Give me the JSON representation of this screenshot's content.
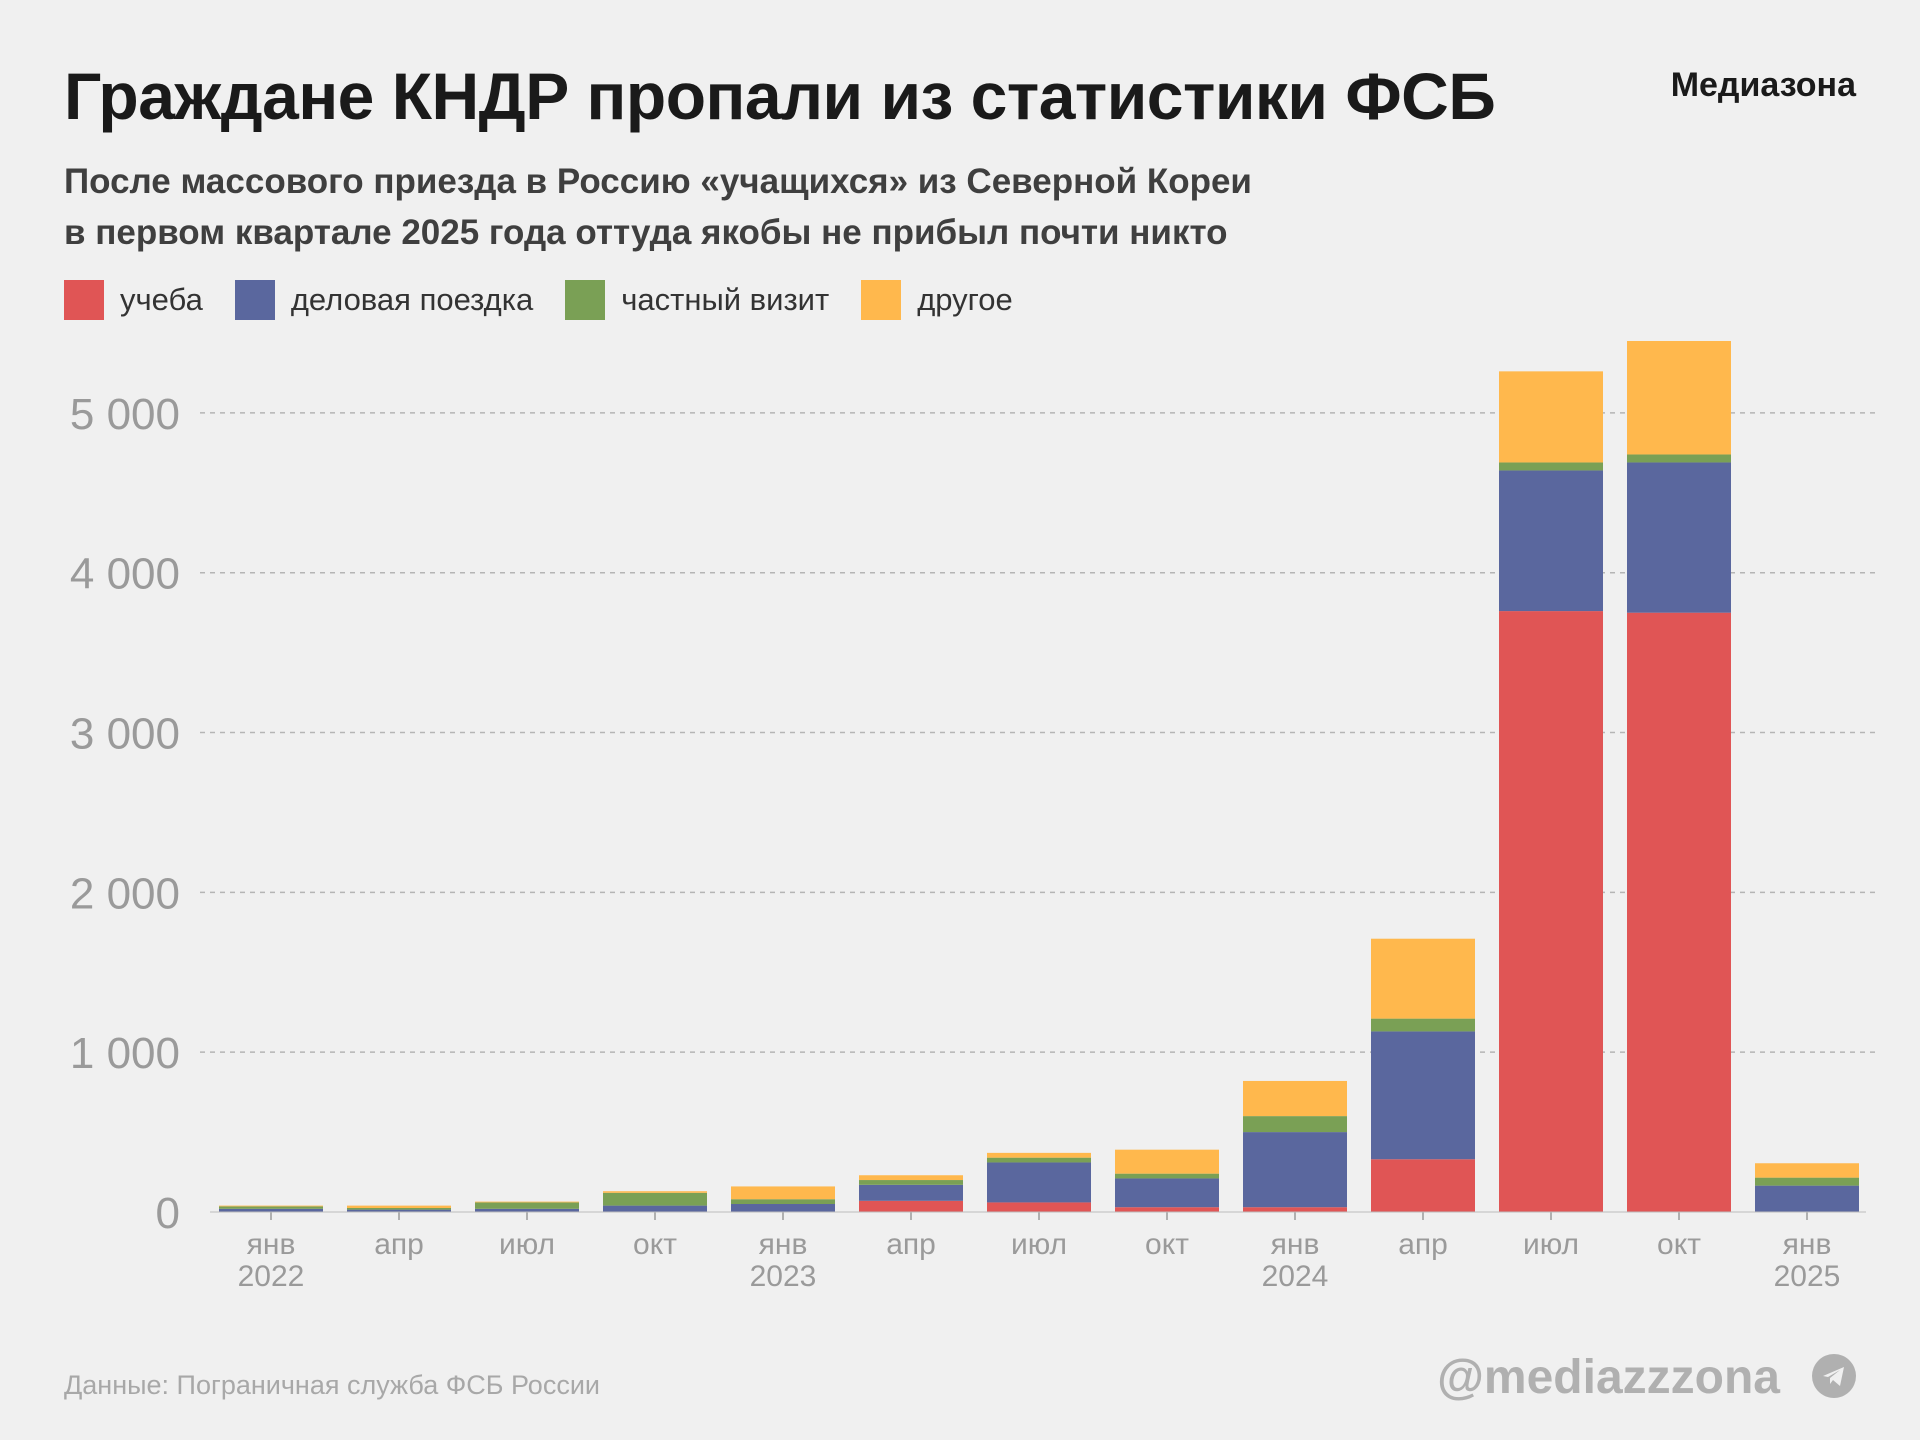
{
  "header": {
    "title": "Граждане КНДР пропали из статистики ФСБ",
    "brand": "Медиазона",
    "subtitle_line1": "После массового приезда в Россию «учащихся» из Северной Кореи",
    "subtitle_line2": "в первом квартале 2025 года оттуда якобы не прибыл почти никто"
  },
  "footer": {
    "source": "Данные: Пограничная служба ФСБ России",
    "handle": "@mediazzzona",
    "icon": "telegram-icon"
  },
  "colors": {
    "study": "#e05555",
    "business": "#5a679e",
    "private": "#7aa055",
    "other": "#ffb84d"
  },
  "chart_data": {
    "type": "bar",
    "stacked": true,
    "categories": [
      "янв 2022",
      "апр",
      "июл",
      "окт",
      "янв 2023",
      "апр",
      "июл",
      "окт",
      "янв 2024",
      "апр",
      "июл",
      "окт",
      "янв 2025"
    ],
    "x_tick_labels": [
      [
        "янв",
        "2022"
      ],
      [
        "апр",
        ""
      ],
      [
        "июл",
        ""
      ],
      [
        "окт",
        ""
      ],
      [
        "янв",
        "2023"
      ],
      [
        "апр",
        ""
      ],
      [
        "июл",
        ""
      ],
      [
        "окт",
        ""
      ],
      [
        "янв",
        "2024"
      ],
      [
        "апр",
        ""
      ],
      [
        "июл",
        ""
      ],
      [
        "окт",
        ""
      ],
      [
        "янв",
        "2025"
      ]
    ],
    "series": [
      {
        "name": "учеба",
        "color": "#e05555",
        "values": [
          0,
          0,
          0,
          0,
          0,
          70,
          60,
          30,
          30,
          330,
          3760,
          3750,
          0
        ]
      },
      {
        "name": "деловая поездка",
        "color": "#5a679e",
        "values": [
          20,
          15,
          20,
          40,
          50,
          100,
          250,
          180,
          470,
          800,
          880,
          940,
          165
        ]
      },
      {
        "name": "частный визит",
        "color": "#7aa055",
        "values": [
          15,
          10,
          40,
          80,
          30,
          30,
          30,
          30,
          100,
          80,
          50,
          50,
          50
        ]
      },
      {
        "name": "другое",
        "color": "#ffb84d",
        "values": [
          5,
          15,
          5,
          10,
          80,
          30,
          30,
          150,
          220,
          500,
          570,
          710,
          90
        ]
      }
    ],
    "y_ticks": [
      0,
      1000,
      2000,
      3000,
      4000,
      5000
    ],
    "y_tick_labels": [
      "0",
      "1 000",
      "2 000",
      "3 000",
      "4 000",
      "5 000"
    ],
    "ylim": [
      0,
      5500
    ],
    "grid": true,
    "legend_position": "top-left"
  }
}
